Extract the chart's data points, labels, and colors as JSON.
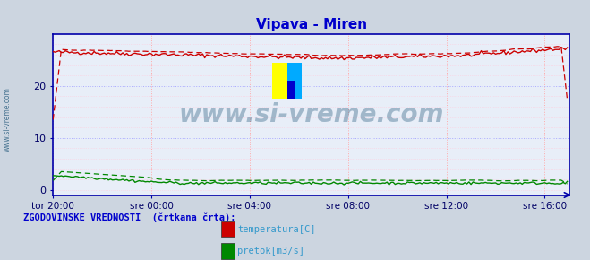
{
  "title": "Vipava - Miren",
  "title_color": "#0000cc",
  "title_fontsize": 11,
  "bg_color": "#ccd5e0",
  "plot_bg_color": "#e8eef8",
  "grid_color_pink": "#ffaaaa",
  "grid_color_blue": "#aaaaff",
  "x_tick_labels": [
    "tor 20:00",
    "sre 00:00",
    "sre 04:00",
    "sre 08:00",
    "sre 12:00",
    "sre 16:00"
  ],
  "x_tick_positions": [
    0,
    48,
    96,
    144,
    192,
    240
  ],
  "y_ticks": [
    0,
    10,
    20
  ],
  "ylim": [
    -1,
    30
  ],
  "xlim": [
    0,
    252
  ],
  "tick_label_color": "#000066",
  "axis_color": "#0000aa",
  "watermark_text": "www.si-vreme.com",
  "watermark_color": "#1a5276",
  "watermark_alpha": 0.35,
  "legend_title": "ZGODOVINSKE VREDNOSTI  (črtkana črta):",
  "legend_title_color": "#0000cc",
  "legend_entries": [
    "temperatura[C]",
    "pretok[m3/s]"
  ],
  "legend_colors": [
    "#cc0000",
    "#008800"
  ],
  "temp_color": "#cc0000",
  "flow_color": "#008800",
  "n_points": 252
}
